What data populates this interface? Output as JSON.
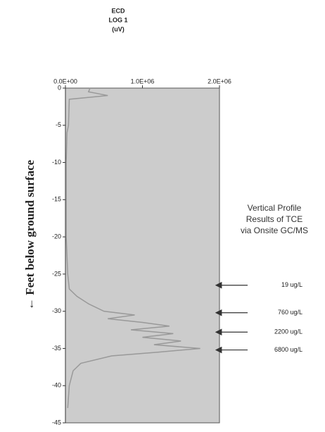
{
  "chart_data": {
    "type": "line",
    "title": [
      "ECD",
      "LOG 1",
      "(uV)"
    ],
    "ylabel": "← Feet below ground surface",
    "xlim": [
      0,
      2000000
    ],
    "xticks": [
      {
        "value": 0,
        "label": "0.0E+00"
      },
      {
        "value": 1000000,
        "label": "1.0E+06"
      },
      {
        "value": 2000000,
        "label": "2.0E+06"
      }
    ],
    "ylim": [
      -45,
      0
    ],
    "yticks": [
      0,
      -5,
      -10,
      -15,
      -20,
      -25,
      -30,
      -35,
      -40,
      -45
    ],
    "plot_color": "#cccccc",
    "series": [
      {
        "color": "#999999",
        "depth": [
          0,
          -0.5,
          -1,
          -1.5,
          -5,
          -6,
          -10,
          -20,
          -25,
          -27,
          -28,
          -29,
          -30,
          -30.5,
          -31,
          -31.5,
          -32,
          -32.5,
          -33,
          -33.5,
          -34,
          -34.5,
          -35,
          -35.5,
          -36,
          -37,
          -38,
          -40,
          -43
        ],
        "values": [
          320000,
          300000,
          550000,
          50000,
          40000,
          20000,
          10000,
          10000,
          30000,
          50000,
          150000,
          300000,
          500000,
          900000,
          550000,
          1000000,
          1350000,
          850000,
          1400000,
          1000000,
          1500000,
          1150000,
          1750000,
          1200000,
          600000,
          200000,
          100000,
          50000,
          30000
        ]
      }
    ],
    "note": [
      "Vertical Profile",
      "Results of TCE",
      "via Onsite GC/MS"
    ],
    "annotations": [
      {
        "text": "19 ug/L",
        "y": -26.5
      },
      {
        "text": "760 ug/L",
        "y": -30.2
      },
      {
        "text": "2200 ug/L",
        "y": -32.8
      },
      {
        "text": "6800 ug/L",
        "y": -35.2
      }
    ]
  }
}
